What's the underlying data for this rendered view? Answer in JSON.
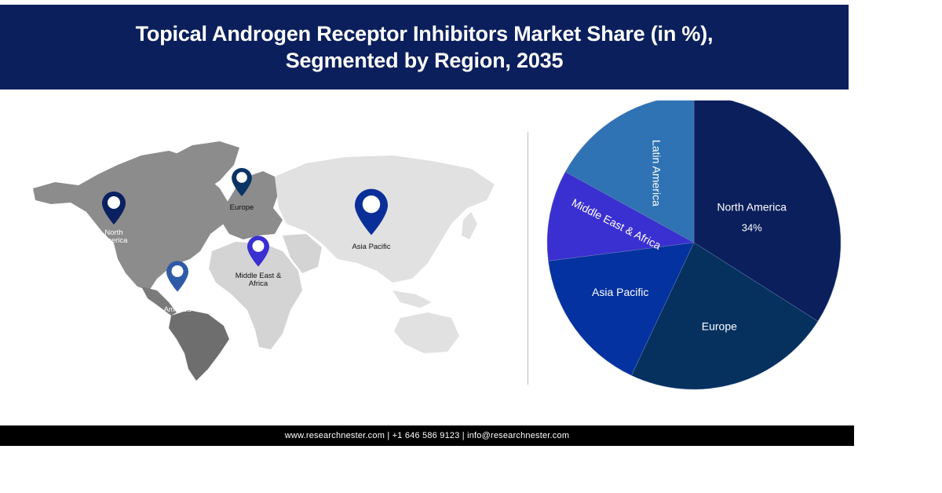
{
  "header": {
    "title_line1": "Topical Androgen Receptor Inhibitors Market Share (in %),",
    "title_line2": "Segmented by Region, 2035",
    "background": "#0b1f5c"
  },
  "map": {
    "pins": [
      {
        "label_line1": "North",
        "label_line2": "America",
        "color": "#0a2060",
        "icon": "map-pin-icon"
      },
      {
        "label_line1": "Europe",
        "label_line2": "",
        "color": "#0a3366",
        "icon": "map-pin-icon"
      },
      {
        "label_line1": "Asia Pacific",
        "label_line2": "",
        "color": "#0b2f99",
        "icon": "map-pin-icon"
      },
      {
        "label_line1": "Middle East &",
        "label_line2": "Africa",
        "color": "#3a2fd0",
        "icon": "map-pin-icon"
      },
      {
        "label_line1": "Latin",
        "label_line2": "America",
        "color": "#2f5aa8",
        "icon": "map-pin-icon"
      }
    ]
  },
  "chart_data": {
    "type": "pie",
    "title": "Topical Androgen Receptor Inhibitors Market Share (in %), Segmented by Region, 2035",
    "categories": [
      "North America",
      "Europe",
      "Asia Pacific",
      "Middle East & Africa",
      "Latin America"
    ],
    "values": [
      34,
      23,
      16,
      10,
      17
    ],
    "colors": [
      "#0b1f5c",
      "#06315f",
      "#0432a0",
      "#3a2fd0",
      "#2f73b5"
    ],
    "data_labels": {
      "North America": "34%"
    },
    "start_angle_deg": 0,
    "direction": "clockwise",
    "legend": "none (labels inside slices)"
  },
  "footer": {
    "text": "www.researchnester.com | +1 646 586 9123 | info@researchnester.com"
  }
}
